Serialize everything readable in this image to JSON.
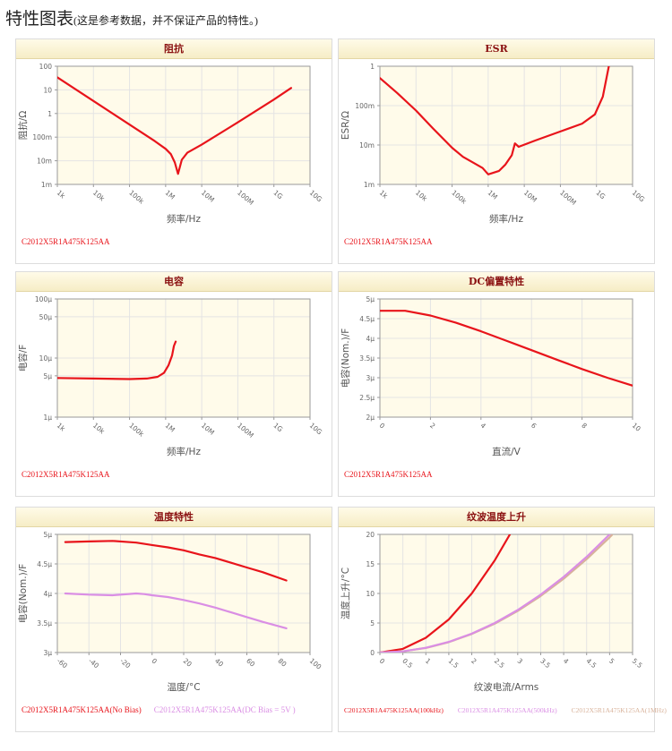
{
  "page": {
    "title": "特性图表",
    "subtitle": "(这是参考数据，并不保证产品的特性。)"
  },
  "colors": {
    "red": "#e8141b",
    "violet": "#da8ee4",
    "tan": "#d8b29a",
    "plot_bg": "#fffbea",
    "grid": "#e4e4e4"
  },
  "charts": [
    {
      "title": "阻抗",
      "legend": [
        {
          "text": "C2012X5R1A475K125AA",
          "color": "#e8141b"
        }
      ],
      "chart_data": {
        "type": "line",
        "x_scale": "log",
        "y_scale": "log",
        "xlabel": "频率/Hz",
        "ylabel": "阻抗/Ω",
        "xlim": [
          1000,
          10000000000
        ],
        "ylim": [
          0.001,
          100
        ],
        "xticks": [
          {
            "v": 1000,
            "label": "1k"
          },
          {
            "v": 10000,
            "label": "10k"
          },
          {
            "v": 100000,
            "label": "100k"
          },
          {
            "v": 1000000,
            "label": "1M"
          },
          {
            "v": 10000000,
            "label": "10M"
          },
          {
            "v": 100000000,
            "label": "100M"
          },
          {
            "v": 1000000000,
            "label": "1G"
          },
          {
            "v": 10000000000,
            "label": "10G"
          }
        ],
        "yticks": [
          {
            "v": 0.001,
            "label": "1m"
          },
          {
            "v": 0.01,
            "label": "10m"
          },
          {
            "v": 0.1,
            "label": "100m"
          },
          {
            "v": 1,
            "label": "1"
          },
          {
            "v": 10,
            "label": "10"
          },
          {
            "v": 100,
            "label": "100"
          }
        ],
        "series": [
          {
            "color": "#e8141b",
            "x": [
              1000,
              10000,
              100000,
              500000,
              1000000,
              1400000,
              1800000,
              2200000,
              2800000,
              4000000,
              10000000,
              100000000,
              1000000000,
              3000000000
            ],
            "y": [
              34,
              3.4,
              0.34,
              0.068,
              0.032,
              0.019,
              0.0085,
              0.0028,
              0.011,
              0.022,
              0.048,
              0.42,
              3.9,
              12
            ]
          }
        ]
      }
    },
    {
      "title": "ESR",
      "legend": [
        {
          "text": "C2012X5R1A475K125AA",
          "color": "#e8141b"
        }
      ],
      "chart_data": {
        "type": "line",
        "x_scale": "log",
        "y_scale": "log",
        "xlabel": "频率/Hz",
        "ylabel": "ESR/Ω",
        "xlim": [
          1000,
          10000000000
        ],
        "ylim": [
          0.001,
          1
        ],
        "xticks": [
          {
            "v": 1000,
            "label": "1k"
          },
          {
            "v": 10000,
            "label": "10k"
          },
          {
            "v": 100000,
            "label": "100k"
          },
          {
            "v": 1000000,
            "label": "1M"
          },
          {
            "v": 10000000,
            "label": "10M"
          },
          {
            "v": 100000000,
            "label": "100M"
          },
          {
            "v": 1000000000,
            "label": "1G"
          },
          {
            "v": 10000000000,
            "label": "10G"
          }
        ],
        "yticks": [
          {
            "v": 0.001,
            "label": "1m"
          },
          {
            "v": 0.01,
            "label": "10m"
          },
          {
            "v": 0.1,
            "label": "100m"
          },
          {
            "v": 1,
            "label": "1"
          }
        ],
        "series": [
          {
            "color": "#e8141b",
            "x": [
              1000,
              3000,
              10000,
              30000,
              100000,
              200000,
              400000,
              700000,
              1000000,
              2000000,
              3000000,
              4500000,
              5500000,
              7000000,
              20000000,
              100000000,
              400000000,
              900000000,
              1500000000,
              2200000000
            ],
            "y": [
              0.5,
              0.21,
              0.075,
              0.026,
              0.0085,
              0.005,
              0.0035,
              0.0026,
              0.0018,
              0.0022,
              0.0032,
              0.0055,
              0.011,
              0.009,
              0.013,
              0.022,
              0.035,
              0.06,
              0.17,
              1.0
            ]
          }
        ]
      }
    },
    {
      "title": "电容",
      "legend": [
        {
          "text": "C2012X5R1A475K125AA",
          "color": "#e8141b"
        }
      ],
      "chart_data": {
        "type": "line",
        "x_scale": "log",
        "y_scale": "log",
        "xlabel": "频率/Hz",
        "ylabel": "电容/F",
        "xlim": [
          1000,
          10000000000
        ],
        "ylim": [
          1e-06,
          0.0001
        ],
        "xticks": [
          {
            "v": 1000,
            "label": "1k"
          },
          {
            "v": 10000,
            "label": "10k"
          },
          {
            "v": 100000,
            "label": "100k"
          },
          {
            "v": 1000000,
            "label": "1M"
          },
          {
            "v": 10000000,
            "label": "10M"
          },
          {
            "v": 100000000,
            "label": "100M"
          },
          {
            "v": 1000000000,
            "label": "1G"
          },
          {
            "v": 10000000000,
            "label": "10G"
          }
        ],
        "yticks": [
          {
            "v": 1e-06,
            "label": "1µ"
          },
          {
            "v": 5e-06,
            "label": "5µ"
          },
          {
            "v": 1e-05,
            "label": "10µ"
          },
          {
            "v": 5e-05,
            "label": "50µ"
          },
          {
            "v": 0.0001,
            "label": "100µ"
          }
        ],
        "series": [
          {
            "color": "#e8141b",
            "x": [
              1000,
              10000,
              100000,
              300000,
              600000,
              900000,
              1200000,
              1500000,
              1700000,
              1900000
            ],
            "y": [
              4.6e-06,
              4.5e-06,
              4.4e-06,
              4.5e-06,
              4.8e-06,
              5.6e-06,
              7.5e-06,
              1.1e-05,
              1.6e-05,
              1.9e-05
            ]
          }
        ]
      }
    },
    {
      "title": "DC偏置特性",
      "legend": [
        {
          "text": "C2012X5R1A475K125AA",
          "color": "#e8141b"
        }
      ],
      "chart_data": {
        "type": "line",
        "x_scale": "linear",
        "y_scale": "linear",
        "xlabel": "直流/V",
        "ylabel": "电容(Nom.)/F",
        "xlim": [
          0,
          10
        ],
        "ylim": [
          2e-06,
          5e-06
        ],
        "xticks": [
          {
            "v": 0,
            "label": "0"
          },
          {
            "v": 2,
            "label": "2"
          },
          {
            "v": 4,
            "label": "4"
          },
          {
            "v": 6,
            "label": "6"
          },
          {
            "v": 8,
            "label": "8"
          },
          {
            "v": 10,
            "label": "10"
          }
        ],
        "yticks": [
          {
            "v": 2e-06,
            "label": "2µ"
          },
          {
            "v": 2.5e-06,
            "label": "2.5µ"
          },
          {
            "v": 3e-06,
            "label": "3µ"
          },
          {
            "v": 3.5e-06,
            "label": "3.5µ"
          },
          {
            "v": 4e-06,
            "label": "4µ"
          },
          {
            "v": 4.5e-06,
            "label": "4.5µ"
          },
          {
            "v": 5e-06,
            "label": "5µ"
          }
        ],
        "series": [
          {
            "color": "#e8141b",
            "x": [
              0,
              1,
              2,
              3,
              4,
              5,
              6,
              7,
              8,
              9,
              10
            ],
            "y": [
              4.7e-06,
              4.7e-06,
              4.58e-06,
              4.4e-06,
              4.18e-06,
              3.94e-06,
              3.7e-06,
              3.46e-06,
              3.22e-06,
              3e-06,
              2.8e-06
            ]
          }
        ]
      }
    },
    {
      "title": "温度特性",
      "legend": [
        {
          "text": "C2012X5R1A475K125AA(No Bias)",
          "color": "#e8141b"
        },
        {
          "text": "C2012X5R1A475K125AA(DC Bias = 5V )",
          "color": "#da8ee4"
        }
      ],
      "chart_data": {
        "type": "line",
        "x_scale": "linear",
        "y_scale": "linear",
        "xlabel": "温度/°C",
        "ylabel": "电容(Nom.)/F",
        "xlim": [
          -60,
          100
        ],
        "ylim": [
          3e-06,
          5e-06
        ],
        "xticks": [
          {
            "v": -60,
            "label": "-60"
          },
          {
            "v": -40,
            "label": "-40"
          },
          {
            "v": -20,
            "label": "-20"
          },
          {
            "v": 0,
            "label": "0"
          },
          {
            "v": 20,
            "label": "20"
          },
          {
            "v": 40,
            "label": "40"
          },
          {
            "v": 60,
            "label": "60"
          },
          {
            "v": 80,
            "label": "80"
          },
          {
            "v": 100,
            "label": "100"
          }
        ],
        "yticks": [
          {
            "v": 3e-06,
            "label": "3µ"
          },
          {
            "v": 3.5e-06,
            "label": "3.5µ"
          },
          {
            "v": 4e-06,
            "label": "4µ"
          },
          {
            "v": 4.5e-06,
            "label": "4.5µ"
          },
          {
            "v": 5e-06,
            "label": "5µ"
          }
        ],
        "series": [
          {
            "color": "#e8141b",
            "x": [
              -55,
              -40,
              -25,
              -10,
              0,
              10,
              20,
              30,
              40,
              50,
              60,
              70,
              85
            ],
            "y": [
              4.87e-06,
              4.88e-06,
              4.89e-06,
              4.86e-06,
              4.82e-06,
              4.78e-06,
              4.73e-06,
              4.66e-06,
              4.6e-06,
              4.52e-06,
              4.44e-06,
              4.36e-06,
              4.22e-06
            ]
          },
          {
            "color": "#da8ee4",
            "x": [
              -55,
              -40,
              -25,
              -10,
              -5,
              0,
              10,
              20,
              30,
              40,
              50,
              60,
              70,
              85
            ],
            "y": [
              4e-06,
              3.98e-06,
              3.97e-06,
              4e-06,
              3.99e-06,
              3.97e-06,
              3.94e-06,
              3.89e-06,
              3.83e-06,
              3.76e-06,
              3.68e-06,
              3.6e-06,
              3.52e-06,
              3.41e-06
            ]
          }
        ]
      }
    },
    {
      "title": "纹波温度上升",
      "legend": [
        {
          "text": "C2012X5R1A475K125AA(100kHz)",
          "color": "#e8141b"
        },
        {
          "text": "C2012X5R1A475K125AA(500kHz)",
          "color": "#da8ee4"
        },
        {
          "text": "C2012X5R1A475K125AA(1MHz)",
          "color": "#d8b29a"
        }
      ],
      "chart_data": {
        "type": "line",
        "x_scale": "linear",
        "y_scale": "linear",
        "xlabel": "纹波电流/Arms",
        "ylabel": "温度上升/°C",
        "xlim": [
          0,
          5.5
        ],
        "ylim": [
          0,
          20
        ],
        "xticks": [
          {
            "v": 0,
            "label": "0"
          },
          {
            "v": 0.5,
            "label": "0.5"
          },
          {
            "v": 1,
            "label": "1"
          },
          {
            "v": 1.5,
            "label": "1.5"
          },
          {
            "v": 2,
            "label": "2"
          },
          {
            "v": 2.5,
            "label": "2.5"
          },
          {
            "v": 3,
            "label": "3"
          },
          {
            "v": 3.5,
            "label": "3.5"
          },
          {
            "v": 4,
            "label": "4"
          },
          {
            "v": 4.5,
            "label": "4.5"
          },
          {
            "v": 5,
            "label": "5"
          },
          {
            "v": 5.5,
            "label": "5.5"
          }
        ],
        "yticks": [
          {
            "v": 0,
            "label": "0"
          },
          {
            "v": 5,
            "label": "5"
          },
          {
            "v": 10,
            "label": "10"
          },
          {
            "v": 15,
            "label": "15"
          },
          {
            "v": 20,
            "label": "20"
          }
        ],
        "series": [
          {
            "color": "#e8141b",
            "x": [
              0,
              0.5,
              1,
              1.5,
              2,
              2.5,
              2.83
            ],
            "y": [
              0,
              0.62,
              2.5,
              5.6,
              10,
              15.6,
              20
            ]
          },
          {
            "color": "#d8b29a",
            "x": [
              0,
              0.5,
              1,
              1.5,
              2,
              2.5,
              3,
              3.5,
              4,
              4.5,
              5,
              5.05
            ],
            "y": [
              0,
              0.2,
              0.78,
              1.76,
              3.13,
              4.88,
              7.03,
              9.57,
              12.5,
              15.8,
              19.5,
              19.9
            ]
          },
          {
            "color": "#da8ee4",
            "x": [
              0,
              0.5,
              1,
              1.5,
              2,
              2.5,
              3,
              3.5,
              4,
              4.5,
              5
            ],
            "y": [
              0,
              0.2,
              0.8,
              1.8,
              3.2,
              5,
              7.2,
              9.8,
              12.8,
              16.2,
              20
            ]
          }
        ]
      }
    }
  ]
}
